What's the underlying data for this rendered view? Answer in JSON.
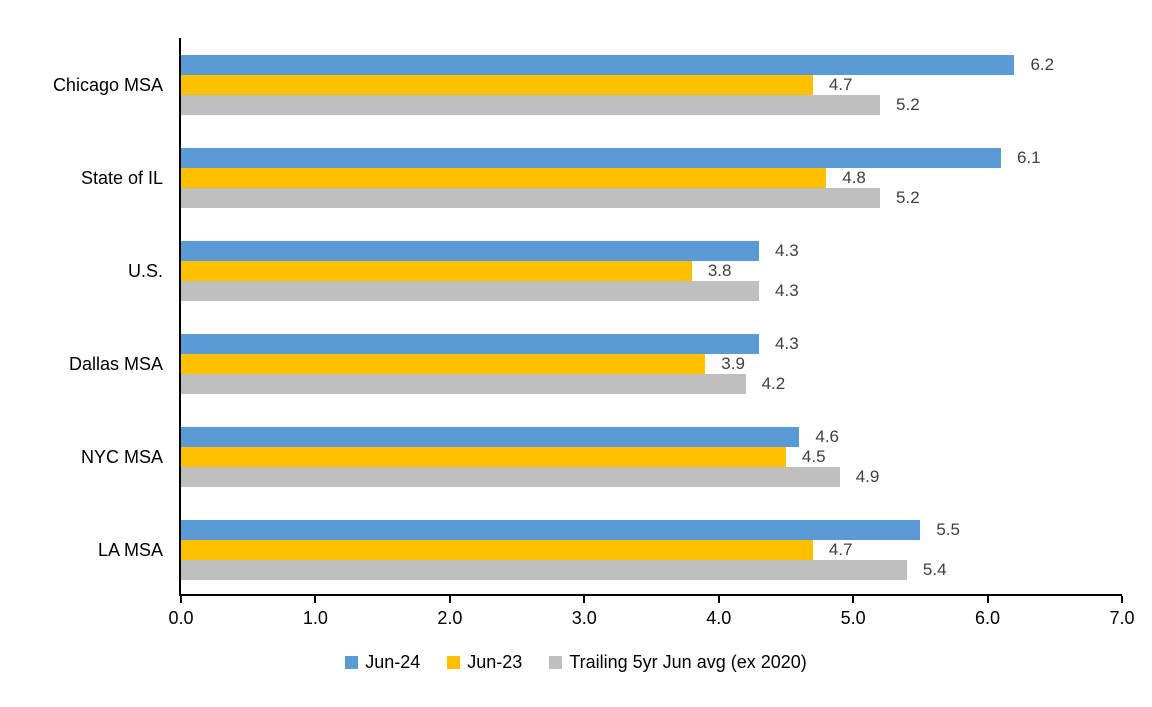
{
  "chart_data": {
    "type": "bar",
    "orientation": "horizontal",
    "title": "",
    "xlabel": "",
    "ylabel": "",
    "grid": false,
    "legend_position": "bottom",
    "categories": [
      "Chicago MSA",
      "State of IL",
      "U.S.",
      "Dallas MSA",
      "NYC MSA",
      "LA MSA"
    ],
    "series": [
      {
        "name": "Jun-24",
        "color": "#5B9BD5",
        "values": [
          6.2,
          6.1,
          4.3,
          4.3,
          4.6,
          5.5
        ]
      },
      {
        "name": "Jun-23",
        "color": "#FFC000",
        "values": [
          4.7,
          4.8,
          3.8,
          3.9,
          4.5,
          4.7
        ]
      },
      {
        "name": "Trailing 5yr Jun avg (ex 2020)",
        "color": "#BFBFBF",
        "values": [
          5.2,
          5.2,
          4.3,
          4.2,
          4.9,
          5.4
        ]
      }
    ],
    "data_labels": [
      [
        "6.2",
        "6.1",
        "4.3",
        "4.3",
        "4.6",
        "5.5"
      ],
      [
        "4.7",
        "4.8",
        "3.8",
        "3.9",
        "4.5",
        "4.7"
      ],
      [
        "5.2",
        "5.2",
        "4.3",
        "4.2",
        "4.9",
        "5.4"
      ]
    ],
    "x_axis": {
      "min": 0,
      "max": 7,
      "step": 1,
      "tick_labels": [
        "0.0",
        "1.0",
        "2.0",
        "3.0",
        "4.0",
        "5.0",
        "6.0",
        "7.0"
      ]
    },
    "colors": {
      "axis_line": "#000000",
      "data_label_text": "#404040",
      "category_text": "#000000",
      "tick_text": "#000000",
      "legend_text": "#000000",
      "background": "#ffffff"
    }
  }
}
